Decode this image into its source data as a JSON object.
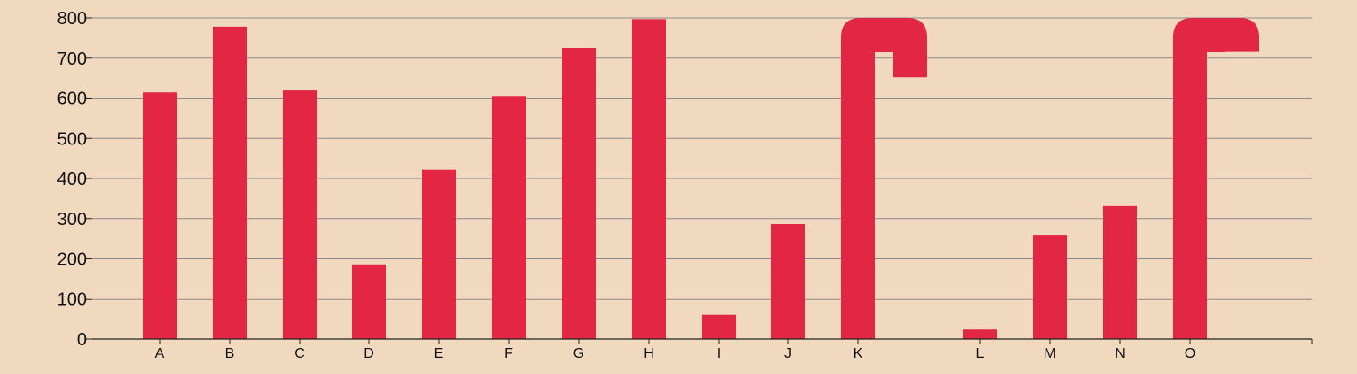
{
  "chart_data": {
    "type": "bar",
    "title": "",
    "xlabel": "",
    "ylabel": "",
    "ylim": [
      0,
      800
    ],
    "yticks": [
      0,
      100,
      200,
      300,
      400,
      500,
      600,
      700,
      800
    ],
    "grid": true,
    "categories": [
      "A",
      "B",
      "C",
      "D",
      "E",
      "F",
      "G",
      "H",
      "I",
      "J",
      "K",
      "L",
      "M",
      "N",
      "O"
    ],
    "values": [
      614,
      778,
      621,
      186,
      423,
      605,
      725,
      797,
      61,
      286,
      800,
      24,
      259,
      331,
      800
    ],
    "overflow": {
      "K": {
        "hook_drop_to": 652
      },
      "O": {
        "hook_drop_to": 716
      }
    }
  },
  "colors": {
    "background": "#f1d9bf",
    "bar": "#e32644",
    "grid": "#8a8a8a",
    "axis": "#222222",
    "text": "#111111"
  }
}
